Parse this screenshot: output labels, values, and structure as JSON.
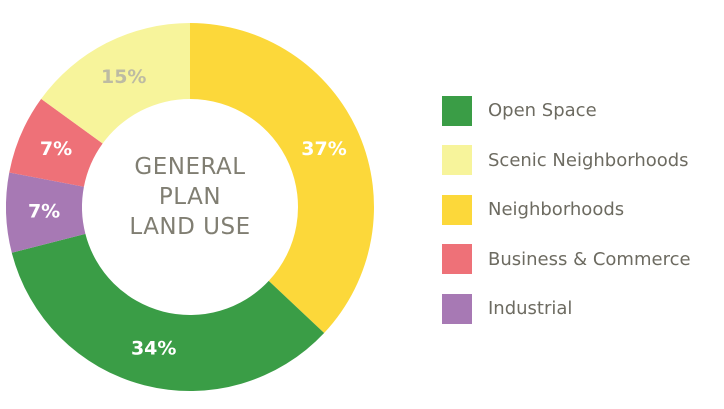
{
  "chart_data": {
    "type": "pie",
    "donut": true,
    "title_lines": [
      "GENERAL",
      "PLAN",
      "LAND USE"
    ],
    "start_angle_deg": 0,
    "direction": "clockwise",
    "slices": [
      {
        "name": "Neighborhoods",
        "value": 37,
        "label": "37%",
        "color": "#fcd83a",
        "label_color": "#ffffff"
      },
      {
        "name": "Open Space",
        "value": 34,
        "label": "34%",
        "color": "#3a9d46",
        "label_color": "#ffffff"
      },
      {
        "name": "Industrial",
        "value": 7,
        "label": "7%",
        "color": "#a779b4",
        "label_color": "#ffffff"
      },
      {
        "name": "Business & Commerce",
        "value": 7,
        "label": "7%",
        "color": "#ee7178",
        "label_color": "#ffffff"
      },
      {
        "name": "Scenic Neighborhoods",
        "value": 15,
        "label": "15%",
        "color": "#f7f49b",
        "label_color": "#bdbba3"
      }
    ],
    "legend_position": "right",
    "legend": [
      {
        "name": "Open Space",
        "color": "#3a9d46"
      },
      {
        "name": "Scenic Neighborhoods",
        "color": "#f7f49b"
      },
      {
        "name": "Neighborhoods",
        "color": "#fcd83a"
      },
      {
        "name": "Business & Commerce",
        "color": "#ee7178"
      },
      {
        "name": "Industrial",
        "color": "#a779b4"
      }
    ]
  }
}
